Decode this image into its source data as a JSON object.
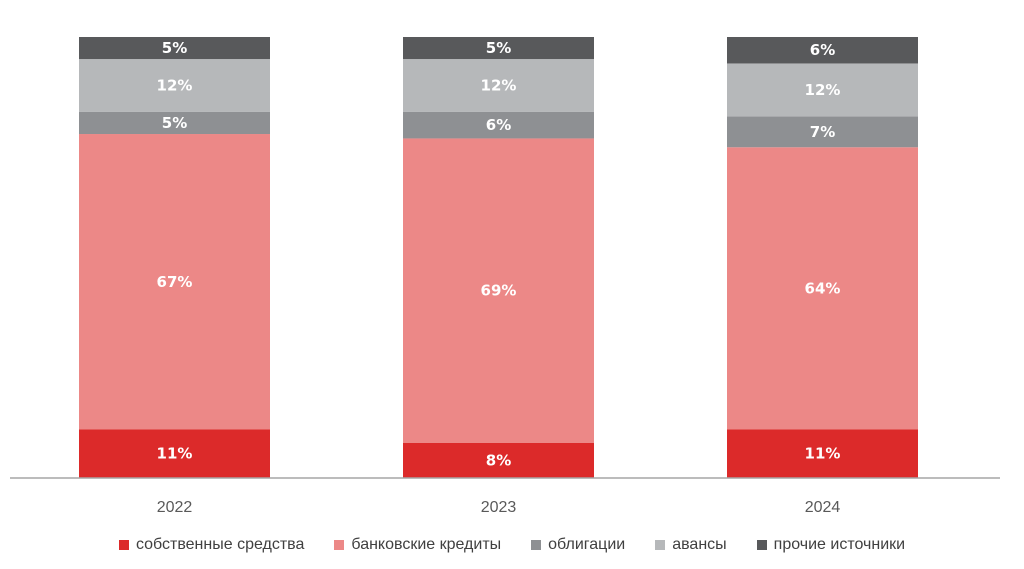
{
  "chart_data": {
    "type": "bar",
    "stacked": true,
    "categories": [
      "2022",
      "2023",
      "2024"
    ],
    "series": [
      {
        "name": "собственные средства",
        "color": "#dc2a2a",
        "values": [
          11,
          8,
          11
        ],
        "labels": [
          "11%",
          "8%",
          "11%"
        ]
      },
      {
        "name": "банковские кредиты",
        "color": "#ec8887",
        "values": [
          67,
          69,
          64
        ],
        "labels": [
          "67%",
          "69%",
          "64%"
        ]
      },
      {
        "name": "облигации",
        "color": "#8e9093",
        "values": [
          5,
          6,
          7
        ],
        "labels": [
          "5%",
          "6%",
          "7%"
        ]
      },
      {
        "name": "авансы",
        "color": "#b6b8ba",
        "values": [
          12,
          12,
          12
        ],
        "labels": [
          "12%",
          "12%",
          "12%"
        ]
      },
      {
        "name": "прочие источники",
        "color": "#58595b",
        "values": [
          5,
          5,
          6
        ],
        "labels": [
          "5%",
          "5%",
          "6%"
        ]
      }
    ],
    "ylim": [
      0,
      100
    ],
    "legend_position": "bottom",
    "grid": false
  }
}
